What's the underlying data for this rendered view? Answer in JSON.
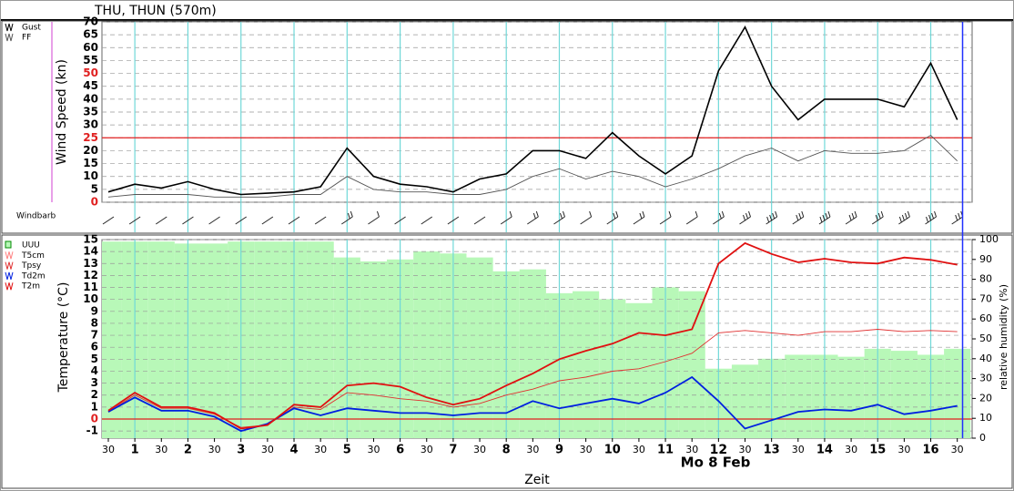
{
  "header": {
    "title": "THU, THUN (570m)"
  },
  "chart_data": [
    {
      "type": "line",
      "ylabel": "Wind Speed (kn)",
      "band_label": "Windbarb",
      "x": [
        0.5,
        1,
        1.5,
        2,
        2.5,
        3,
        3.5,
        4,
        4.5,
        5,
        5.5,
        6,
        6.5,
        7,
        7.5,
        8,
        8.5,
        9,
        9.5,
        10,
        10.5,
        11,
        11.5,
        12,
        12.5,
        13,
        13.5,
        14,
        14.5,
        15,
        15.5,
        16,
        16.5
      ],
      "xlim": [
        0.38,
        16.78
      ],
      "ylim": [
        0,
        70
      ],
      "yticks": [
        0,
        5,
        10,
        15,
        20,
        25,
        30,
        35,
        40,
        45,
        50,
        55,
        60,
        65,
        70
      ],
      "highlight_ticks": [
        0,
        25,
        50
      ],
      "reference_line": 25,
      "reference_color": "#e02020",
      "grid": true,
      "series": [
        {
          "name": "Gust",
          "color": "#000000",
          "values": [
            4,
            7,
            5.5,
            8,
            5,
            3,
            3.5,
            4,
            6,
            21,
            10,
            7,
            6,
            4,
            9,
            11,
            20,
            20,
            17,
            27,
            18,
            11,
            18,
            51,
            68,
            45,
            32,
            40,
            40,
            40,
            37,
            54,
            32
          ]
        },
        {
          "name": "FF",
          "color": "#555555",
          "values": [
            2,
            3,
            3,
            3,
            2,
            2,
            2,
            3,
            3,
            10,
            5,
            4,
            4,
            3,
            3,
            5,
            10,
            13,
            9,
            12,
            10,
            6,
            9,
            13,
            18,
            21,
            16,
            20,
            19,
            19,
            20,
            26,
            16
          ]
        }
      ]
    },
    {
      "type": "line",
      "ylabel": "Temperature (°C)",
      "y2label": "relative humidity (%)",
      "xlabel": "Zeit",
      "date_label": "Mo 8 Feb",
      "x": [
        0.5,
        1,
        1.5,
        2,
        2.5,
        3,
        3.5,
        4,
        4.5,
        5,
        5.5,
        6,
        6.5,
        7,
        7.5,
        8,
        8.5,
        9,
        9.5,
        10,
        10.5,
        11,
        11.5,
        12,
        12.5,
        13,
        13.5,
        14,
        14.5,
        15,
        15.5,
        16,
        16.5
      ],
      "xlim": [
        0.38,
        16.78
      ],
      "xticks": [
        {
          "value": 0.5,
          "label": "30"
        },
        1,
        {
          "value": 1.5,
          "label": "30"
        },
        2,
        {
          "value": 2.5,
          "label": "30"
        },
        3,
        {
          "value": 3.5,
          "label": "30"
        },
        4,
        {
          "value": 4.5,
          "label": "30"
        },
        5,
        {
          "value": 5.5,
          "label": "30"
        },
        6,
        {
          "value": 6.5,
          "label": "30"
        },
        7,
        {
          "value": 7.5,
          "label": "30"
        },
        8,
        {
          "value": 8.5,
          "label": "30"
        },
        9,
        {
          "value": 9.5,
          "label": "30"
        },
        10,
        {
          "value": 10.5,
          "label": "30"
        },
        11,
        {
          "value": 11.5,
          "label": "30"
        },
        12,
        {
          "value": 12.5,
          "label": "30"
        },
        13,
        {
          "value": 13.5,
          "label": "30"
        },
        14,
        {
          "value": 14.5,
          "label": "30"
        },
        15,
        {
          "value": 15.5,
          "label": "30"
        },
        16,
        {
          "value": 16.5,
          "label": "30"
        }
      ],
      "bold_xtick": 12,
      "now_line": 16.6,
      "ylim": [
        -1.6,
        15
      ],
      "yticks": [
        -1,
        0,
        1,
        2,
        3,
        4,
        5,
        6,
        7,
        8,
        9,
        10,
        11,
        12,
        13,
        14,
        15
      ],
      "highlight_ticks": [
        0
      ],
      "reference_line": 0,
      "reference_color": "#e02020",
      "y2lim": [
        0,
        100
      ],
      "y2ticks": [
        0,
        10,
        20,
        30,
        40,
        50,
        60,
        70,
        80,
        90,
        100
      ],
      "grid": true,
      "series": [
        {
          "name": "UUU",
          "kind": "bar",
          "axis": "y2",
          "color": "#b8f8b8",
          "values": [
            99,
            99,
            99,
            98,
            98,
            99,
            99,
            99,
            99,
            91,
            89,
            90,
            94,
            93,
            91,
            84,
            85,
            73,
            74,
            70,
            68,
            76,
            74,
            35,
            37,
            40,
            42,
            42,
            41,
            45,
            44,
            42,
            45
          ]
        },
        {
          "name": "T5cm",
          "color": "#ff8080",
          "values": [
            null,
            null,
            null,
            null,
            null,
            null,
            null,
            null,
            null,
            null,
            null,
            null,
            null,
            null,
            null,
            null,
            null,
            null,
            null,
            null,
            null,
            null,
            null,
            null,
            null,
            null,
            null,
            null,
            null,
            null,
            null,
            null,
            null
          ]
        },
        {
          "name": "Tpsy",
          "color": "#e03030",
          "values": [
            0.6,
            2.0,
            0.9,
            0.9,
            0.4,
            -0.7,
            -0.5,
            1.0,
            0.8,
            2.2,
            2.0,
            1.7,
            1.5,
            1.0,
            1.3,
            2.0,
            2.5,
            3.2,
            3.5,
            4.0,
            4.2,
            4.8,
            5.5,
            7.2,
            7.4,
            7.2,
            7.0,
            7.3,
            7.3,
            7.5,
            7.3,
            7.4,
            7.3
          ]
        },
        {
          "name": "Td2m",
          "color": "#0020e0",
          "values": [
            0.6,
            1.8,
            0.7,
            0.7,
            0.2,
            -1.0,
            -0.4,
            0.9,
            0.3,
            0.9,
            0.7,
            0.5,
            0.5,
            0.3,
            0.5,
            0.5,
            1.5,
            0.9,
            1.3,
            1.7,
            1.3,
            2.2,
            3.5,
            1.5,
            -0.8,
            -0.1,
            0.6,
            0.8,
            0.7,
            1.2,
            0.4,
            0.7,
            1.1
          ]
        },
        {
          "name": "T2m",
          "color": "#e01010",
          "values": [
            0.7,
            2.2,
            1.0,
            1.0,
            0.5,
            -0.8,
            -0.5,
            1.2,
            1.0,
            2.8,
            3.0,
            2.7,
            1.8,
            1.2,
            1.7,
            2.8,
            3.8,
            5.0,
            5.7,
            6.3,
            7.2,
            7.0,
            7.5,
            13.0,
            14.7,
            13.8,
            13.1,
            13.4,
            13.1,
            13.0,
            13.5,
            13.3,
            12.9
          ]
        }
      ]
    }
  ]
}
